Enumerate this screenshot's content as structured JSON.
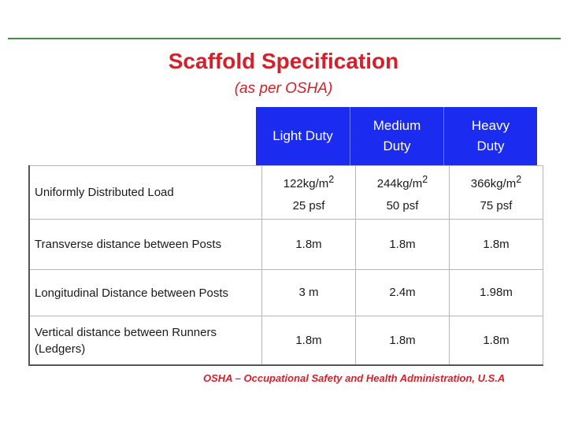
{
  "title": "Scaffold Specification",
  "subtitle": "(as per OSHA)",
  "columns": [
    {
      "line1": "Light Duty",
      "line2": ""
    },
    {
      "line1": "Medium",
      "line2": "Duty"
    },
    {
      "line1": "Heavy",
      "line2": "Duty"
    }
  ],
  "rows": [
    {
      "label_line1": "Uniformly Distributed Load",
      "label_line2": "",
      "values": [
        {
          "line1": "122kg/m",
          "sup": "2",
          "line2": "25 psf"
        },
        {
          "line1": "244kg/m",
          "sup": "2",
          "line2": "50 psf"
        },
        {
          "line1": "366kg/m",
          "sup": "2",
          "line2": "75 psf"
        }
      ]
    },
    {
      "label_line1": "Transverse distance between Posts",
      "label_line2": "",
      "values": [
        {
          "line1": "1.8m"
        },
        {
          "line1": "1.8m"
        },
        {
          "line1": "1.8m"
        }
      ]
    },
    {
      "label_line1": "Longitudinal Distance between Posts",
      "label_line2": "",
      "values": [
        {
          "line1": "3 m"
        },
        {
          "line1": "2.4m"
        },
        {
          "line1": "1.98m"
        }
      ]
    },
    {
      "label_line1": "Vertical distance between Runners",
      "label_line2": "(Ledgers)",
      "values": [
        {
          "line1": "1.8m"
        },
        {
          "line1": "1.8m"
        },
        {
          "line1": "1.8m"
        }
      ]
    }
  ],
  "footnote": "OSHA – Occupational Safety and Health Administration, U.S.A",
  "colors": {
    "title": "#d4202a",
    "header_bg": "#1b2cf0",
    "header_text": "#ffffff",
    "rule": "#4a8a4a"
  }
}
